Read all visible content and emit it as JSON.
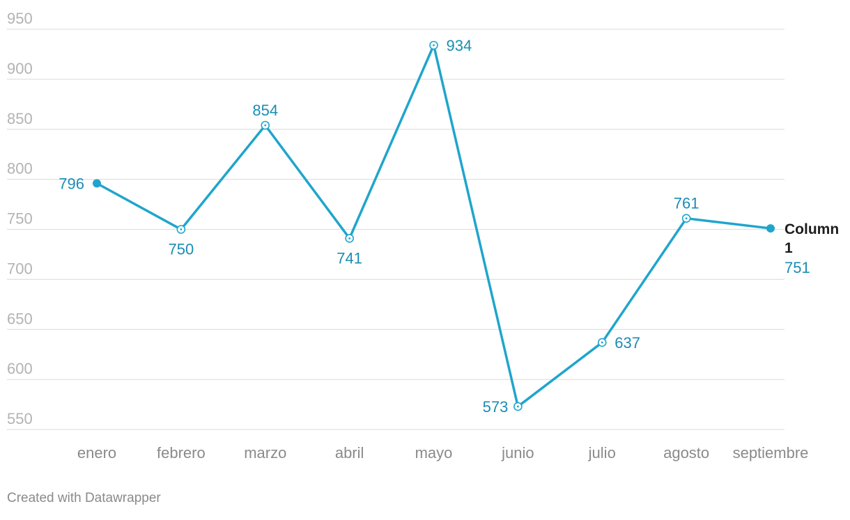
{
  "chart_data": {
    "type": "line",
    "categories": [
      "enero",
      "febrero",
      "marzo",
      "abril",
      "mayo",
      "junio",
      "julio",
      "agosto",
      "septiembre"
    ],
    "series": [
      {
        "name": "Column 1",
        "values": [
          796,
          750,
          854,
          741,
          934,
          573,
          637,
          761,
          751
        ]
      }
    ],
    "y_ticks": [
      550,
      600,
      650,
      700,
      750,
      800,
      850,
      900,
      950
    ],
    "ylim": [
      550,
      950
    ],
    "title": "",
    "xlabel": "",
    "ylabel": "",
    "grid": true,
    "colors": {
      "line": "#1fa5cc",
      "label": "#1a8db3",
      "grid": "#e0e0e0",
      "tick_label": "#b3b3b3",
      "category_label": "#8a8a8a",
      "series_label": "#1d1d1d"
    }
  },
  "credit": "Created with Datawrapper"
}
